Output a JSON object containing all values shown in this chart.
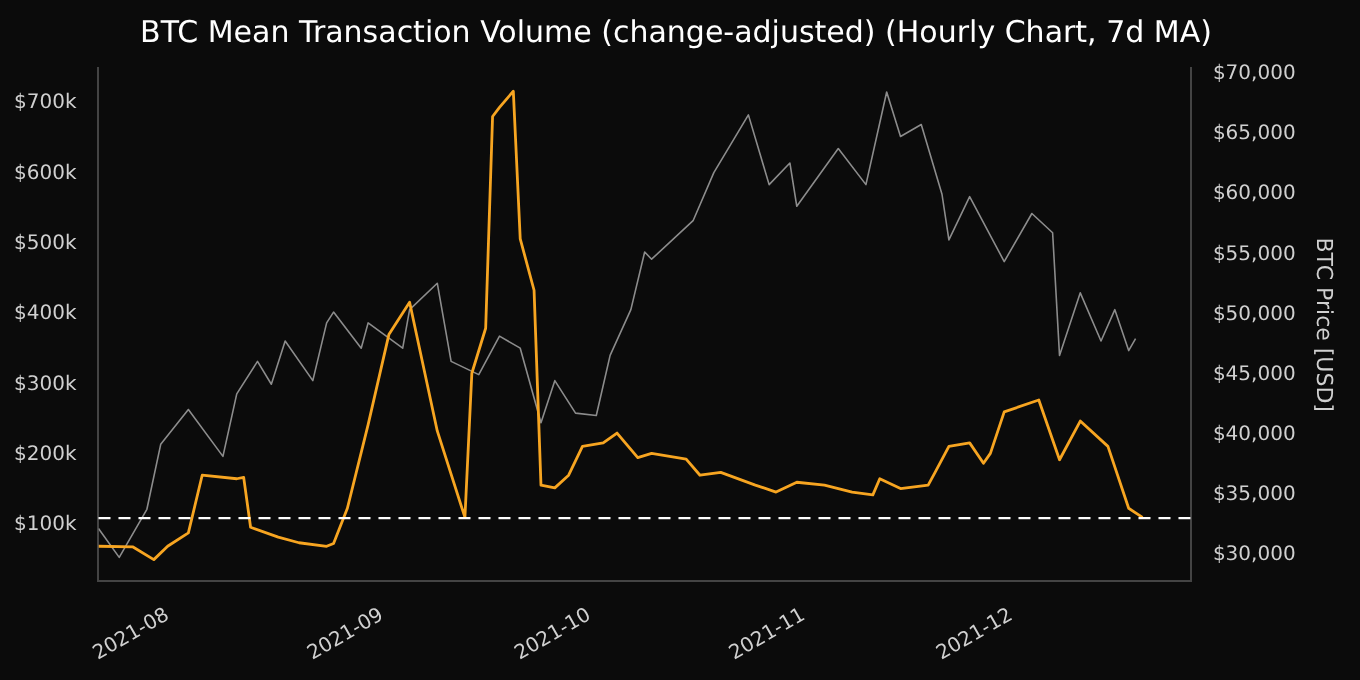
{
  "chart_data": {
    "type": "line",
    "title": "BTC Mean Transaction Volume (change-adjusted) (Hourly Chart, 7d MA)",
    "y2label": "BTC Price [USD]",
    "xlim": [
      "2021-07-22",
      "2021-12-27"
    ],
    "xticks": [
      {
        "value": "2021-08-01",
        "label": "2021-08"
      },
      {
        "value": "2021-09-01",
        "label": "2021-09"
      },
      {
        "value": "2021-10-01",
        "label": "2021-10"
      },
      {
        "value": "2021-11-01",
        "label": "2021-11"
      },
      {
        "value": "2021-12-01",
        "label": "2021-12"
      }
    ],
    "ylim": [
      20000,
      750000
    ],
    "yticks": [
      {
        "value": 100000,
        "label": "$100k"
      },
      {
        "value": 200000,
        "label": "$200k"
      },
      {
        "value": 300000,
        "label": "$300k"
      },
      {
        "value": 400000,
        "label": "$400k"
      },
      {
        "value": 500000,
        "label": "$500k"
      },
      {
        "value": 600000,
        "label": "$600k"
      },
      {
        "value": 700000,
        "label": "$700k"
      }
    ],
    "y2lim": [
      27800,
      70500
    ],
    "y2ticks": [
      {
        "value": 30000,
        "label": "$30,000"
      },
      {
        "value": 35000,
        "label": "$35,000"
      },
      {
        "value": 40000,
        "label": "$40,000"
      },
      {
        "value": 45000,
        "label": "$45,000"
      },
      {
        "value": 50000,
        "label": "$50,000"
      },
      {
        "value": 55000,
        "label": "$55,000"
      },
      {
        "value": 60000,
        "label": "$60,000"
      },
      {
        "value": 65000,
        "label": "$65,000"
      },
      {
        "value": 70000,
        "label": "$70,000"
      }
    ],
    "grid": false,
    "legend": false,
    "marker": "none",
    "line_style": "solid",
    "ref_lines": [
      {
        "axis": "y",
        "value": 110000,
        "color": "#ffffff",
        "line_style": "dashed"
      }
    ],
    "series": [
      {
        "type": "line",
        "axis": "y2",
        "color": "#8c8c8c",
        "x": [
          "2021-07-22",
          "2021-07-25",
          "2021-07-29",
          "2021-07-31",
          "2021-08-04",
          "2021-08-09",
          "2021-08-11",
          "2021-08-14",
          "2021-08-16",
          "2021-08-18",
          "2021-08-22",
          "2021-08-24",
          "2021-08-25",
          "2021-08-29",
          "2021-08-30",
          "2021-09-04",
          "2021-09-05",
          "2021-09-09",
          "2021-09-11",
          "2021-09-15",
          "2021-09-18",
          "2021-09-21",
          "2021-09-24",
          "2021-09-26",
          "2021-09-29",
          "2021-10-02",
          "2021-10-04",
          "2021-10-07",
          "2021-10-09",
          "2021-10-10",
          "2021-10-16",
          "2021-10-19",
          "2021-10-24",
          "2021-10-27",
          "2021-10-30",
          "2021-10-31",
          "2021-11-06",
          "2021-11-10",
          "2021-11-13",
          "2021-11-15",
          "2021-11-18",
          "2021-11-21",
          "2021-11-22",
          "2021-11-25",
          "2021-11-30",
          "2021-12-04",
          "2021-12-07",
          "2021-12-08",
          "2021-12-11",
          "2021-12-14",
          "2021-12-16",
          "2021-12-18",
          "2021-12-19"
        ],
        "values": [
          32200,
          29800,
          33800,
          39200,
          42100,
          38200,
          43400,
          46100,
          44200,
          47800,
          44500,
          49300,
          50200,
          47200,
          49300,
          47200,
          50400,
          52600,
          46100,
          45000,
          48200,
          47200,
          41000,
          44500,
          41800,
          41600,
          46600,
          50400,
          55200,
          54600,
          57800,
          61800,
          66600,
          60800,
          62600,
          59000,
          63800,
          60800,
          68500,
          64800,
          65800,
          60000,
          56200,
          59800,
          54400,
          58400,
          56800,
          46600,
          51800,
          47800,
          50400,
          47000,
          48000
        ]
      },
      {
        "type": "line",
        "axis": "y",
        "color": "#f7a521",
        "x": [
          "2021-07-22",
          "2021-07-27",
          "2021-07-30",
          "2021-08-01",
          "2021-08-04",
          "2021-08-06",
          "2021-08-11",
          "2021-08-12",
          "2021-08-13",
          "2021-08-17",
          "2021-08-20",
          "2021-08-24",
          "2021-08-25",
          "2021-08-27",
          "2021-08-30",
          "2021-09-02",
          "2021-09-05",
          "2021-09-06",
          "2021-09-09",
          "2021-09-13",
          "2021-09-14",
          "2021-09-16",
          "2021-09-17",
          "2021-09-18",
          "2021-09-20",
          "2021-09-21",
          "2021-09-23",
          "2021-09-24",
          "2021-09-26",
          "2021-09-28",
          "2021-09-30",
          "2021-10-03",
          "2021-10-05",
          "2021-10-08",
          "2021-10-10",
          "2021-10-15",
          "2021-10-17",
          "2021-10-20",
          "2021-10-25",
          "2021-10-28",
          "2021-10-31",
          "2021-11-04",
          "2021-11-08",
          "2021-11-11",
          "2021-11-12",
          "2021-11-15",
          "2021-11-19",
          "2021-11-20",
          "2021-11-22",
          "2021-11-25",
          "2021-11-27",
          "2021-11-28",
          "2021-11-30",
          "2021-12-05",
          "2021-12-08",
          "2021-12-11",
          "2021-12-15",
          "2021-12-18",
          "2021-12-20"
        ],
        "values": [
          70000,
          69000,
          51000,
          70000,
          89000,
          171000,
          166000,
          168000,
          97000,
          83000,
          75000,
          70000,
          74000,
          124000,
          243000,
          371000,
          417000,
          371000,
          234000,
          111000,
          316000,
          380000,
          681000,
          694000,
          717000,
          507000,
          434000,
          157000,
          153000,
          171000,
          212000,
          217000,
          231000,
          196000,
          202000,
          194000,
          171000,
          175000,
          157000,
          147000,
          161000,
          157000,
          147000,
          143000,
          166000,
          152000,
          157000,
          175000,
          212000,
          217000,
          188000,
          202000,
          261000,
          278000,
          193000,
          248000,
          212000,
          124000,
          111000
        ]
      }
    ]
  }
}
